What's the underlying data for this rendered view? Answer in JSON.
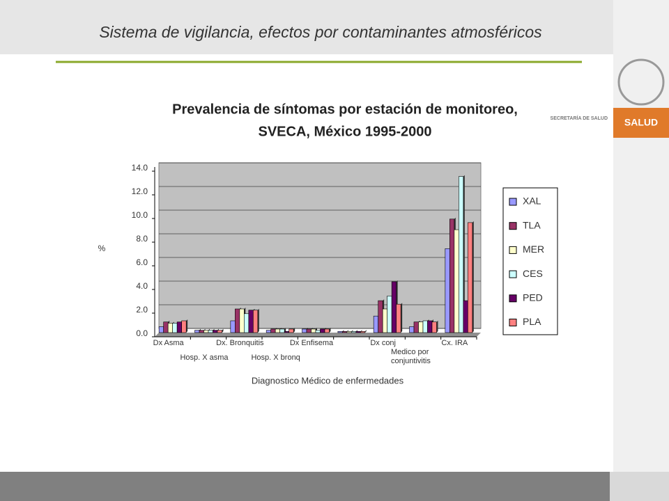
{
  "header": {
    "title": "Sistema de vigilancia, efectos por contaminantes atmosféricos",
    "agency": "SECRETARÍA DE SALUD",
    "brand": "SALUD"
  },
  "chart_data": {
    "type": "bar",
    "title": "Prevalencia de síntomas por estación de monitoreo,",
    "subtitle": "SVECA, México 1995-2000",
    "y_label": "%",
    "x_label": "Diagnostico Médico de enfermedades",
    "categories": [
      "Dx Asma",
      "Hosp. X asma",
      "Dx. Bronquitis",
      "Hosp. X bronq",
      "Dx Enfisema",
      null,
      "Dx conj",
      "Medico  por conjuntivitis",
      "Cx. IRA"
    ],
    "series": [
      {
        "name": "XAL",
        "color": "#9999ff",
        "values": [
          0.5,
          0.2,
          1.0,
          0.2,
          0.3,
          0.1,
          1.4,
          0.5,
          7.1
        ]
      },
      {
        "name": "TLA",
        "color": "#993366",
        "values": [
          0.9,
          0.2,
          2.0,
          0.3,
          0.3,
          0.1,
          2.7,
          0.9,
          9.6
        ]
      },
      {
        "name": "MER",
        "color": "#ffffcc",
        "values": [
          0.8,
          0.2,
          2.0,
          0.3,
          0.3,
          0.1,
          2.0,
          0.9,
          8.7
        ]
      },
      {
        "name": "CES",
        "color": "#ccffff",
        "values": [
          0.8,
          0.2,
          1.6,
          0.3,
          0.2,
          0.1,
          3.1,
          1.0,
          13.2
        ]
      },
      {
        "name": "PED",
        "color": "#660066",
        "values": [
          0.9,
          0.2,
          1.9,
          0.1,
          0.3,
          0.1,
          4.3,
          1.0,
          2.7
        ]
      },
      {
        "name": "PLA",
        "color": "#ff8080",
        "values": [
          1.0,
          0.2,
          1.9,
          0.3,
          0.3,
          0.1,
          2.4,
          0.9,
          9.3
        ]
      }
    ],
    "ylim": [
      0,
      14
    ],
    "yticks": [
      {
        "value": 0,
        "label": "0.0"
      },
      {
        "value": 2,
        "label": "2.0"
      },
      {
        "value": 4,
        "label": "4.0"
      },
      {
        "value": 6,
        "label": "6.0"
      },
      {
        "value": 8,
        "label": "8.0"
      },
      {
        "value": 10,
        "label": "10.0"
      },
      {
        "value": 12,
        "label": "12.0"
      },
      {
        "value": 14,
        "label": "14.0"
      }
    ],
    "legend": "right"
  }
}
